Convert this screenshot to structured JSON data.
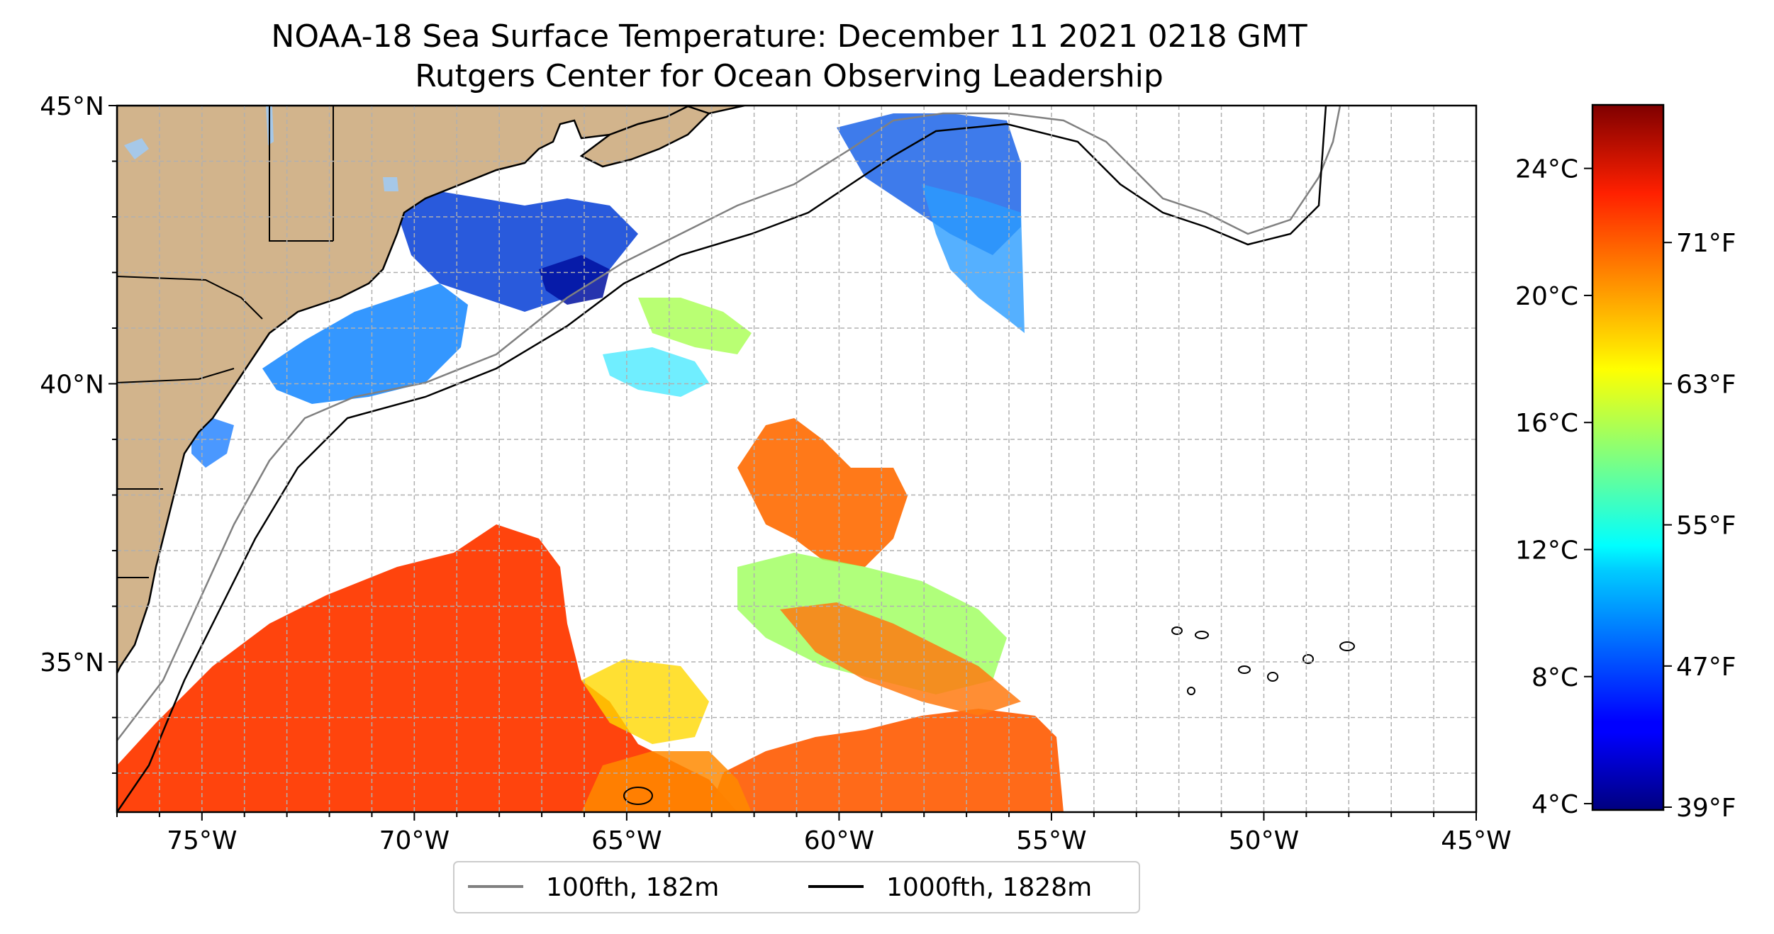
{
  "title": {
    "line1": "NOAA-18 Sea Surface Temperature: December 11 2021 0218 GMT",
    "line2": "Rutgers Center for Ocean Observing Leadership"
  },
  "map": {
    "lon_range": [
      -77,
      -45
    ],
    "lat_range": [
      32.3,
      45
    ],
    "lon_ticks": [
      "75°W",
      "70°W",
      "65°W",
      "60°W",
      "55°W",
      "50°W",
      "45°W"
    ],
    "lat_ticks": [
      "45°N",
      "40°N",
      "35°N"
    ],
    "gridlines": true,
    "land_color": "#d2b48c",
    "lake_color": "#a6c8e8",
    "isobath_100fth_color": "#808080",
    "isobath_1000fth_color": "#000000"
  },
  "legend": {
    "placement": "bottom-center",
    "items": [
      {
        "label": "100fth, 182m",
        "color": "#808080"
      },
      {
        "label": "1000fth, 1828m",
        "color": "#000000"
      }
    ]
  },
  "colorbar": {
    "colormap": "jet",
    "celsius_ticks": [
      "24°C",
      "20°C",
      "16°C",
      "12°C",
      "8°C",
      "4°C"
    ],
    "fahrenheit_ticks": [
      "71°F",
      "63°F",
      "55°F",
      "47°F",
      "39°F"
    ],
    "range_celsius": [
      3.8,
      26
    ]
  }
}
